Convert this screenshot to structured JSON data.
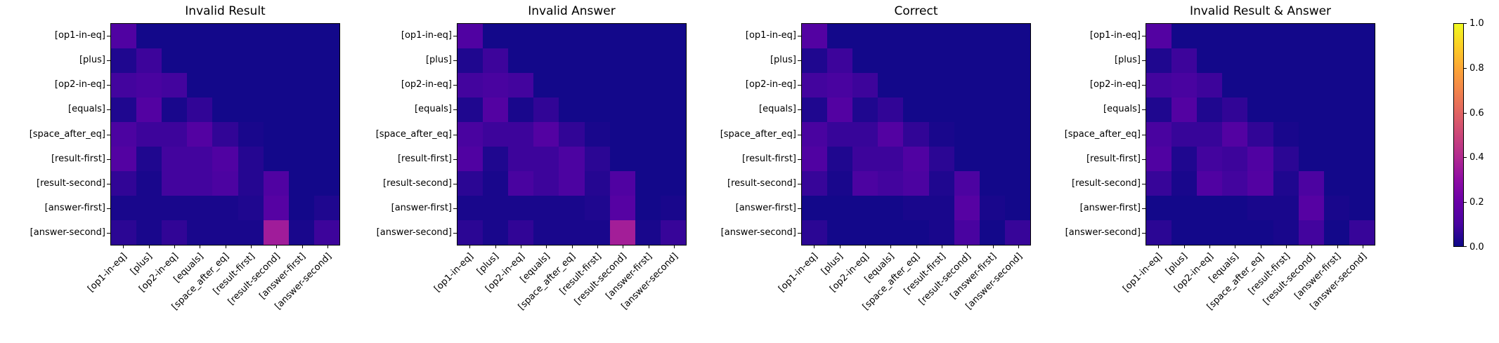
{
  "figure": {
    "background_color": "#ffffff",
    "text_color": "#000000",
    "axes_edge_color": "#000000"
  },
  "chart_data": {
    "type": "heatmap",
    "layout": "row of 4 subplots (9x9 matrices) with one shared vertical colorbar on the right",
    "colormap": "plasma",
    "colormap_stops": [
      "#0d0887",
      "#4903a0",
      "#6a00a8",
      "#8f0da4",
      "#b12a90",
      "#cb4679",
      "#e16462",
      "#f2844b",
      "#fca636",
      "#fccf25",
      "#f0f921"
    ],
    "vmin": 0.0,
    "vmax": 1.0,
    "grid": "off",
    "colorbar": {
      "position": "right",
      "tick_labels": [
        "1.0",
        "0.8",
        "0.6",
        "0.4",
        "0.2",
        "0.0"
      ]
    },
    "row_labels": [
      "[op1-in-eq]",
      "[plus]",
      "[op2-in-eq]",
      "[equals]",
      "[space_after_eq]",
      "[result-first]",
      "[result-second]",
      "[answer-first]",
      "[answer-second]"
    ],
    "col_labels": [
      "[op1-in-eq]",
      "[plus]",
      "[op2-in-eq]",
      "[equals]",
      "[space_after_eq]",
      "[result-first]",
      "[result-second]",
      "[answer-first]",
      "[answer-second]"
    ],
    "heatmaps": [
      {
        "title": "Invalid Result",
        "values": [
          [
            0.12,
            0.01,
            0.01,
            0.01,
            0.01,
            0.01,
            0.01,
            0.01,
            0.01
          ],
          [
            0.03,
            0.08,
            0.01,
            0.01,
            0.01,
            0.01,
            0.01,
            0.01,
            0.01
          ],
          [
            0.09,
            0.1,
            0.09,
            0.01,
            0.01,
            0.01,
            0.01,
            0.01,
            0.01
          ],
          [
            0.03,
            0.13,
            0.02,
            0.06,
            0.01,
            0.01,
            0.01,
            0.01,
            0.01
          ],
          [
            0.11,
            0.08,
            0.08,
            0.13,
            0.06,
            0.02,
            0.01,
            0.01,
            0.01
          ],
          [
            0.13,
            0.03,
            0.09,
            0.09,
            0.12,
            0.04,
            0.01,
            0.01,
            0.01
          ],
          [
            0.06,
            0.02,
            0.09,
            0.09,
            0.11,
            0.04,
            0.12,
            0.01,
            0.01
          ],
          [
            0.02,
            0.02,
            0.02,
            0.02,
            0.02,
            0.03,
            0.14,
            0.01,
            0.03
          ],
          [
            0.05,
            0.02,
            0.06,
            0.02,
            0.02,
            0.02,
            0.35,
            0.02,
            0.08
          ]
        ]
      },
      {
        "title": "Invalid Answer",
        "values": [
          [
            0.12,
            0.01,
            0.01,
            0.01,
            0.01,
            0.01,
            0.01,
            0.01,
            0.01
          ],
          [
            0.03,
            0.08,
            0.01,
            0.01,
            0.01,
            0.01,
            0.01,
            0.01,
            0.01
          ],
          [
            0.09,
            0.1,
            0.09,
            0.01,
            0.01,
            0.01,
            0.01,
            0.01,
            0.01
          ],
          [
            0.03,
            0.13,
            0.02,
            0.06,
            0.01,
            0.01,
            0.01,
            0.01,
            0.01
          ],
          [
            0.1,
            0.08,
            0.08,
            0.13,
            0.06,
            0.02,
            0.01,
            0.01,
            0.01
          ],
          [
            0.12,
            0.03,
            0.08,
            0.08,
            0.11,
            0.05,
            0.01,
            0.01,
            0.01
          ],
          [
            0.05,
            0.02,
            0.1,
            0.08,
            0.11,
            0.04,
            0.12,
            0.01,
            0.01
          ],
          [
            0.02,
            0.02,
            0.02,
            0.02,
            0.02,
            0.03,
            0.14,
            0.01,
            0.02
          ],
          [
            0.05,
            0.02,
            0.06,
            0.02,
            0.02,
            0.02,
            0.36,
            0.02,
            0.07
          ]
        ]
      },
      {
        "title": "Correct",
        "values": [
          [
            0.13,
            0.01,
            0.01,
            0.01,
            0.01,
            0.01,
            0.01,
            0.01,
            0.01
          ],
          [
            0.03,
            0.08,
            0.01,
            0.01,
            0.01,
            0.01,
            0.01,
            0.01,
            0.01
          ],
          [
            0.09,
            0.1,
            0.08,
            0.01,
            0.01,
            0.01,
            0.01,
            0.01,
            0.01
          ],
          [
            0.03,
            0.13,
            0.03,
            0.06,
            0.01,
            0.01,
            0.01,
            0.01,
            0.01
          ],
          [
            0.1,
            0.07,
            0.07,
            0.13,
            0.06,
            0.02,
            0.01,
            0.01,
            0.01
          ],
          [
            0.12,
            0.03,
            0.08,
            0.08,
            0.12,
            0.05,
            0.01,
            0.01,
            0.01
          ],
          [
            0.07,
            0.02,
            0.11,
            0.09,
            0.11,
            0.03,
            0.11,
            0.01,
            0.01
          ],
          [
            0.01,
            0.01,
            0.01,
            0.01,
            0.02,
            0.02,
            0.14,
            0.02,
            0.01
          ],
          [
            0.05,
            0.01,
            0.01,
            0.01,
            0.01,
            0.02,
            0.1,
            0.01,
            0.07
          ]
        ]
      },
      {
        "title": "Invalid Result & Answer",
        "values": [
          [
            0.13,
            0.01,
            0.01,
            0.01,
            0.01,
            0.01,
            0.01,
            0.01,
            0.01
          ],
          [
            0.03,
            0.08,
            0.01,
            0.01,
            0.01,
            0.01,
            0.01,
            0.01,
            0.01
          ],
          [
            0.09,
            0.1,
            0.08,
            0.01,
            0.01,
            0.01,
            0.01,
            0.01,
            0.01
          ],
          [
            0.03,
            0.13,
            0.03,
            0.06,
            0.01,
            0.01,
            0.01,
            0.01,
            0.01
          ],
          [
            0.1,
            0.07,
            0.07,
            0.13,
            0.06,
            0.02,
            0.01,
            0.01,
            0.01
          ],
          [
            0.12,
            0.03,
            0.09,
            0.08,
            0.12,
            0.05,
            0.01,
            0.01,
            0.01
          ],
          [
            0.07,
            0.02,
            0.12,
            0.09,
            0.13,
            0.03,
            0.11,
            0.01,
            0.01
          ],
          [
            0.01,
            0.01,
            0.01,
            0.01,
            0.02,
            0.02,
            0.14,
            0.02,
            0.01
          ],
          [
            0.05,
            0.01,
            0.01,
            0.01,
            0.01,
            0.02,
            0.09,
            0.01,
            0.07
          ]
        ]
      }
    ]
  }
}
